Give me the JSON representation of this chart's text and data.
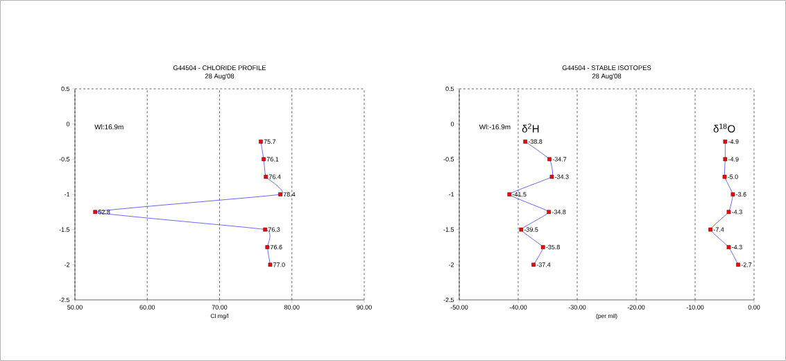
{
  "chart_data": [
    {
      "type": "line",
      "title": "G44504 - CHLORIDE PROFILE",
      "subtitle": "28 Aug'08",
      "xlabel": "Cl mg/l",
      "annotations": [
        "Wl:16.9m"
      ],
      "xlim": [
        50,
        90
      ],
      "xticks": [
        {
          "value": 50,
          "label": "50.00"
        },
        {
          "value": 60,
          "label": "60.00"
        },
        {
          "value": 70,
          "label": "70.00"
        },
        {
          "value": 80,
          "label": "80.00"
        },
        {
          "value": 90,
          "label": "90.00"
        }
      ],
      "ylim": [
        -2.5,
        0.5
      ],
      "yticks": [
        0.5,
        0,
        -0.5,
        -1,
        -1.5,
        -2,
        -2.5
      ],
      "grid": "x",
      "marker": "square",
      "line_style": "solid",
      "orientation": "horizontal",
      "series": [
        {
          "color": "#0000ff",
          "colors": [
            "#ff0000",
            "#ff0000",
            "#ff0000",
            "#ff0000",
            "#ff0000",
            "#ff0000",
            "#ff0000",
            "#ff0000"
          ],
          "values": [
            75.7,
            76.1,
            76.4,
            78.4,
            52.8,
            76.3,
            76.6,
            77.0
          ],
          "x": [
            -0.25,
            -0.5,
            -0.75,
            -1,
            -1.25,
            -1.5,
            -1.75,
            -2
          ],
          "value_labels": [
            "75.7",
            "76.1",
            "76.4",
            "78.4",
            "52.8",
            "76.3",
            "76.6",
            "77.0"
          ]
        }
      ]
    },
    {
      "type": "line",
      "title": "G44504 - STABLE ISOTOPES",
      "subtitle": "28 Aug'08",
      "xlabel": "(per mil)",
      "annotations": [
        "Wl:-16.9m"
      ],
      "xlim": [
        -50,
        0
      ],
      "xticks": [
        {
          "value": -50,
          "label": "-50.00"
        },
        {
          "value": -40,
          "label": "-40.00"
        },
        {
          "value": -30,
          "label": "-30.00"
        },
        {
          "value": -20,
          "label": "-20.00"
        },
        {
          "value": -10,
          "label": "-10.00"
        },
        {
          "value": 0,
          "label": "0.00"
        }
      ],
      "ylim": [
        -2.5,
        0.5
      ],
      "yticks": [
        0.5,
        0,
        -0.5,
        -1,
        -1.5,
        -2,
        -2.5
      ],
      "grid": "x",
      "marker": "square",
      "line_style": "solid",
      "orientation": "horizontal",
      "series": [
        {
          "name": "δ$^{2}$H",
          "color": "#0000ff",
          "colors": [
            "#ff0000",
            "#ff0000",
            "#ff0000",
            "#ff0000",
            "#ff0000",
            "#ff0000",
            "#ff0000",
            "#ff0000"
          ],
          "values": [
            -38.8,
            -34.7,
            -34.3,
            -41.5,
            -34.8,
            -39.5,
            -35.8,
            -37.4
          ],
          "x": [
            -0.25,
            -0.5,
            -0.75,
            -1,
            -1.25,
            -1.5,
            -1.75,
            -2
          ],
          "value_labels": [
            "-38.8",
            "-34.7",
            "-34.3",
            "-41.5",
            "-34.8",
            "-39.5",
            "-35.8",
            "-37.4"
          ]
        },
        {
          "name": "δ$^{18}$O",
          "color": "#0000ff",
          "colors": [
            "#ff0000",
            "#ff0000",
            "#ff0000",
            "#ff0000",
            "#ff0000",
            "#ff0000",
            "#ff0000",
            "#ff0000"
          ],
          "values": [
            -4.9,
            -4.9,
            -5.0,
            -3.6,
            -4.3,
            -7.4,
            -4.3,
            -2.7
          ],
          "x": [
            -0.25,
            -0.5,
            -0.75,
            -1,
            -1.25,
            -1.5,
            -1.75,
            -2
          ],
          "value_labels": [
            "-4.9",
            "-4.9",
            "-5.0",
            "-3.6",
            "-4.3",
            "-7.4",
            "-4.3",
            "-2.7"
          ]
        }
      ]
    }
  ]
}
